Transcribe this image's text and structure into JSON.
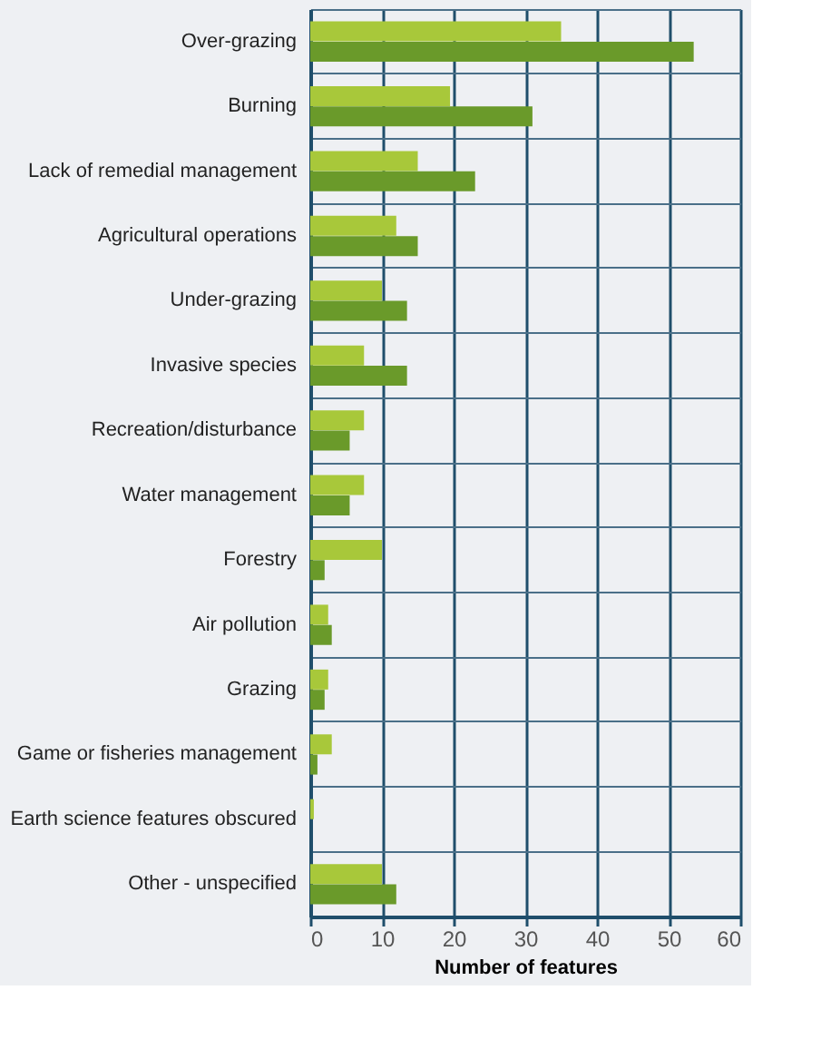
{
  "chart_data": {
    "type": "bar",
    "orientation": "horizontal",
    "xlabel": "Number of features",
    "categories": [
      "Over-grazing",
      "Burning",
      "Lack of remedial management",
      "Agricultural operations",
      "Under-grazing",
      "Invasive species",
      "Recreation/disturbance",
      "Water management",
      "Forestry",
      "Air pollution",
      "Grazing",
      "Game or fisheries management",
      "Earth science features obscured",
      "Other - unspecified"
    ],
    "series": [
      {
        "color": "#a8c83a",
        "values": [
          35,
          19.5,
          15,
          12,
          10,
          7.5,
          7.5,
          7.5,
          10,
          2.5,
          2.5,
          3,
          0.5,
          10
        ]
      },
      {
        "color": "#6a9a2a",
        "values": [
          53.5,
          31,
          23,
          15,
          13.5,
          13.5,
          5.5,
          5.5,
          2,
          3,
          2,
          1,
          0,
          12
        ]
      }
    ],
    "xlim": [
      0,
      60
    ],
    "xticks": [
      0,
      10,
      20,
      30,
      40,
      50,
      60
    ],
    "grid": true
  }
}
